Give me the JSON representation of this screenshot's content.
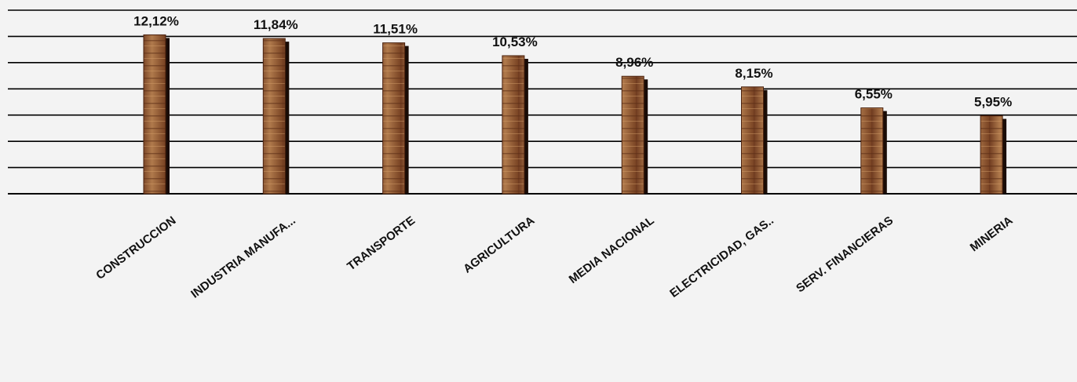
{
  "chart_data": {
    "type": "bar",
    "title": "",
    "xlabel": "",
    "ylabel": "",
    "categories": [
      "CONSTRUCCION",
      "INDUSTRIA MANUFA...",
      "TRANSPORTE",
      "AGRICULTURA",
      "MEDIA NACIONAL",
      "ELECTRICIDAD, GAS..",
      "SERV. FINANCIERAS",
      "MINERIA"
    ],
    "values": [
      12.12,
      11.84,
      11.51,
      10.53,
      8.96,
      8.15,
      6.55,
      5.95
    ],
    "value_labels": [
      "12,12%",
      "11,84%",
      "11,51%",
      "10,53%",
      "8,96%",
      "8,15%",
      "6,55%",
      "5,95%"
    ],
    "ylim": [
      0,
      14
    ],
    "grid": true,
    "legend": "none",
    "colors": {
      "bar": "#8a4b2a",
      "bar_light": "#b07a4c",
      "bar_shadow": "#1a0c06",
      "grid": "#000000",
      "background": "#f3f3f3"
    }
  }
}
